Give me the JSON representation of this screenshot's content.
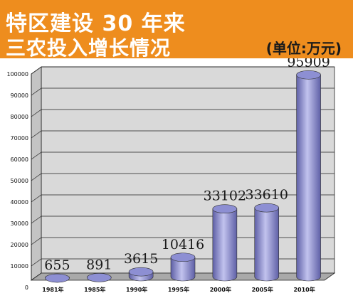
{
  "header": {
    "title_line1": "特区建设 30 年来",
    "title_line2": "三农投入增长情况",
    "unit": "(单位:万元)"
  },
  "colors": {
    "header_bg": "#ee8d1e",
    "bar_fill": "#8d8fd3",
    "bar_dark": "#5e5fa6",
    "bar_light": "#c2c3ee",
    "plot_wall": "#d9d9d9",
    "plot_floor": "#a9a9a9"
  },
  "chart_data": {
    "type": "bar",
    "title": "特区建设 30 年来 三农投入增长情况",
    "ylabel": "",
    "xlabel": "",
    "unit": "(单位:万元)",
    "categories": [
      "1981年",
      "1985年",
      "1990年",
      "1995年",
      "2000年",
      "2005年",
      "2010年"
    ],
    "values": [
      655,
      891,
      3615,
      10416,
      33102,
      33610,
      95909
    ],
    "data_labels": [
      "655",
      "891",
      "3615",
      "10416",
      "33102",
      "33610",
      "95909"
    ],
    "ylim": [
      0,
      100000
    ],
    "yticks": [
      0,
      10000,
      20000,
      30000,
      40000,
      50000,
      60000,
      70000,
      80000,
      90000,
      100000
    ],
    "ytick_labels": [
      "0",
      "10000",
      "20000",
      "30000",
      "40000",
      "50000",
      "60000",
      "70000",
      "80000",
      "90000",
      "100000"
    ],
    "grid": true,
    "style": "3d-cylinder"
  }
}
